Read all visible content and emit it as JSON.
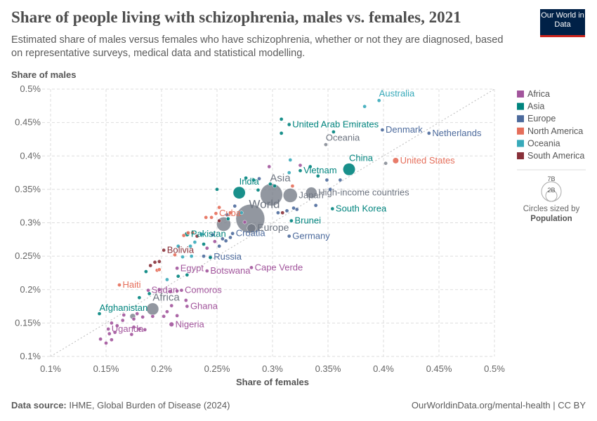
{
  "header": {
    "title": "Share of people living with schizophrenia, males vs. females, 2021",
    "subtitle": "Estimated share of males versus females who have schizophrenia, whether or not they are diagnosed, based on representative surveys, medical data and statistical modelling.",
    "logo": "Our World in Data"
  },
  "footer": {
    "source_label": "Data source:",
    "source": "IHME, Global Burden of Disease (2024)",
    "link": "OurWorldinData.org/mental-health | CC BY"
  },
  "colors": {
    "Africa": "#a2559c",
    "Asia": "#00847e",
    "Europe": "#4c6a9c",
    "North America": "#e56e5a",
    "Oceania": "#38aaba",
    "South America": "#883039",
    "Region": "#6d7480"
  },
  "legend": {
    "items": [
      "Africa",
      "Asia",
      "Europe",
      "North America",
      "Oceania",
      "South America"
    ],
    "size_title": "Circles sized by",
    "size_var": "Population",
    "size_labels": [
      "7B",
      "2B"
    ]
  },
  "chart_data": {
    "type": "scatter",
    "xlabel": "Share of females",
    "ylabel": "Share of males",
    "xlim": [
      0.1,
      0.5
    ],
    "ylim": [
      0.1,
      0.5
    ],
    "xticks": [
      "0.1%",
      "0.15%",
      "0.2%",
      "0.25%",
      "0.3%",
      "0.35%",
      "0.4%",
      "0.45%",
      "0.5%"
    ],
    "yticks": [
      "0.1%",
      "0.15%",
      "0.2%",
      "0.25%",
      "0.3%",
      "0.35%",
      "0.4%",
      "0.45%",
      "0.5%"
    ],
    "grid": true,
    "legend_position": "right",
    "diagonal_line": true,
    "points": [
      {
        "label": "Australia",
        "x": 0.396,
        "y": 0.483,
        "group": "Oceania",
        "pop": 0.026
      },
      {
        "label": "United Arab Emirates",
        "x": 0.315,
        "y": 0.447,
        "group": "Asia",
        "pop": 0.01
      },
      {
        "label": "Denmark",
        "x": 0.399,
        "y": 0.439,
        "group": "Europe",
        "pop": 0.006
      },
      {
        "label": "Netherlands",
        "x": 0.441,
        "y": 0.434,
        "group": "Europe",
        "pop": 0.018
      },
      {
        "label": "Oceania",
        "x": 0.348,
        "y": 0.417,
        "group": "Region",
        "pop": 0.045
      },
      {
        "label": "United States",
        "x": 0.411,
        "y": 0.393,
        "group": "North America",
        "pop": 0.34
      },
      {
        "label": "China",
        "x": 0.369,
        "y": 0.38,
        "group": "Asia",
        "pop": 1.42
      },
      {
        "label": "Vietnam",
        "x": 0.325,
        "y": 0.378,
        "group": "Asia",
        "pop": 0.098
      },
      {
        "label": "High-income countries",
        "x": 0.335,
        "y": 0.345,
        "group": "Region",
        "pop": 1.2
      },
      {
        "label": "Asia",
        "x": 0.299,
        "y": 0.342,
        "group": "Region",
        "pop": 4.7
      },
      {
        "label": "Japan",
        "x": 0.316,
        "y": 0.341,
        "group": "Region",
        "pop": 1.9
      },
      {
        "label": "India",
        "x": 0.27,
        "y": 0.345,
        "group": "Asia",
        "pop": 1.41
      },
      {
        "label": "World",
        "x": 0.28,
        "y": 0.306,
        "group": "Region",
        "pop": 7.9
      },
      {
        "label": "Europe",
        "x": 0.281,
        "y": 0.292,
        "group": "Region",
        "pop": 0.74
      },
      {
        "label": "South Korea",
        "x": 0.354,
        "y": 0.321,
        "group": "Asia",
        "pop": 0.05
      },
      {
        "label": "Brunei",
        "x": 0.317,
        "y": 0.303,
        "group": "Asia",
        "pop": 0.0005
      },
      {
        "label": "Germany",
        "x": 0.315,
        "y": 0.28,
        "group": "Europe",
        "pop": 0.083
      },
      {
        "label": "Croatia",
        "x": 0.264,
        "y": 0.284,
        "group": "Europe",
        "pop": 0.004
      },
      {
        "label": "Pakistan",
        "x": 0.223,
        "y": 0.283,
        "group": "Asia",
        "pop": 0.23
      },
      {
        "label": "Cuba",
        "x": 0.249,
        "y": 0.314,
        "group": "North America",
        "pop": 0.011
      },
      {
        "label": "Bolivia",
        "x": 0.202,
        "y": 0.259,
        "group": "South America",
        "pop": 0.012
      },
      {
        "label": "Russia",
        "x": 0.244,
        "y": 0.249,
        "group": "Europe",
        "pop": 0.145
      },
      {
        "label": "Egypt",
        "x": 0.214,
        "y": 0.232,
        "group": "Africa",
        "pop": 0.11
      },
      {
        "label": "Botswana",
        "x": 0.241,
        "y": 0.228,
        "group": "Africa",
        "pop": 0.0025
      },
      {
        "label": "Cape Verde",
        "x": 0.281,
        "y": 0.233,
        "group": "Africa",
        "pop": 0.0006
      },
      {
        "label": "Haiti",
        "x": 0.162,
        "y": 0.207,
        "group": "North America",
        "pop": 0.011
      },
      {
        "label": "Sudan",
        "x": 0.188,
        "y": 0.199,
        "group": "Africa",
        "pop": 0.046
      },
      {
        "label": "Comoros",
        "x": 0.218,
        "y": 0.199,
        "group": "Africa",
        "pop": 0.0008
      },
      {
        "label": "Africa",
        "x": 0.192,
        "y": 0.171,
        "group": "Region",
        "pop": 1.4
      },
      {
        "label": "Ghana",
        "x": 0.223,
        "y": 0.175,
        "group": "Africa",
        "pop": 0.033
      },
      {
        "label": "Afghanistan",
        "x": 0.144,
        "y": 0.164,
        "group": "Asia",
        "pop": 0.04
      },
      {
        "label": "Nigeria",
        "x": 0.209,
        "y": 0.148,
        "group": "Africa",
        "pop": 0.21
      },
      {
        "label": "Uganda",
        "x": 0.152,
        "y": 0.141,
        "group": "Africa",
        "pop": 0.047
      },
      {
        "label": "",
        "x": 0.256,
        "y": 0.298,
        "group": "Region",
        "pop": 1.9
      },
      {
        "label": "",
        "x": 0.383,
        "y": 0.474,
        "group": "Oceania",
        "pop": 0.005
      },
      {
        "label": "",
        "x": 0.308,
        "y": 0.455,
        "group": "Asia",
        "pop": 0.003
      },
      {
        "label": "",
        "x": 0.308,
        "y": 0.434,
        "group": "Asia",
        "pop": 0.003
      },
      {
        "label": "",
        "x": 0.355,
        "y": 0.436,
        "group": "Asia",
        "pop": 0.004
      },
      {
        "label": "",
        "x": 0.402,
        "y": 0.389,
        "group": "Region",
        "pop": 0.003
      },
      {
        "label": "",
        "x": 0.334,
        "y": 0.384,
        "group": "Asia",
        "pop": 0.004
      },
      {
        "label": "",
        "x": 0.316,
        "y": 0.394,
        "group": "Oceania",
        "pop": 0.003
      },
      {
        "label": "",
        "x": 0.315,
        "y": 0.375,
        "group": "Oceania",
        "pop": 0.003
      },
      {
        "label": "",
        "x": 0.297,
        "y": 0.384,
        "group": "Africa",
        "pop": 0.003
      },
      {
        "label": "",
        "x": 0.325,
        "y": 0.386,
        "group": "Africa",
        "pop": 0.003
      },
      {
        "label": "",
        "x": 0.341,
        "y": 0.37,
        "group": "Asia",
        "pop": 0.003
      },
      {
        "label": "",
        "x": 0.349,
        "y": 0.364,
        "group": "Europe",
        "pop": 0.004
      },
      {
        "label": "",
        "x": 0.361,
        "y": 0.364,
        "group": "Europe",
        "pop": 0.004
      },
      {
        "label": "",
        "x": 0.352,
        "y": 0.35,
        "group": "Europe",
        "pop": 0.004
      },
      {
        "label": "",
        "x": 0.288,
        "y": 0.366,
        "group": "Europe",
        "pop": 0.004
      },
      {
        "label": "",
        "x": 0.302,
        "y": 0.355,
        "group": "Asia",
        "pop": 0.005
      },
      {
        "label": "",
        "x": 0.276,
        "y": 0.367,
        "group": "Asia",
        "pop": 0.004
      },
      {
        "label": "",
        "x": 0.283,
        "y": 0.364,
        "group": "Asia",
        "pop": 0.004
      },
      {
        "label": "",
        "x": 0.287,
        "y": 0.349,
        "group": "Asia",
        "pop": 0.004
      },
      {
        "label": "",
        "x": 0.298,
        "y": 0.358,
        "group": "Asia",
        "pop": 0.03
      },
      {
        "label": "",
        "x": 0.25,
        "y": 0.35,
        "group": "Asia",
        "pop": 0.004
      },
      {
        "label": "",
        "x": 0.318,
        "y": 0.355,
        "group": "North America",
        "pop": 0.004
      },
      {
        "label": "",
        "x": 0.339,
        "y": 0.326,
        "group": "Europe",
        "pop": 0.004
      },
      {
        "label": "",
        "x": 0.319,
        "y": 0.322,
        "group": "Europe",
        "pop": 0.004
      },
      {
        "label": "",
        "x": 0.322,
        "y": 0.32,
        "group": "Europe",
        "pop": 0.004
      },
      {
        "label": "",
        "x": 0.305,
        "y": 0.315,
        "group": "Europe",
        "pop": 0.004
      },
      {
        "label": "",
        "x": 0.309,
        "y": 0.315,
        "group": "South America",
        "pop": 0.004
      },
      {
        "label": "",
        "x": 0.313,
        "y": 0.318,
        "group": "Europe",
        "pop": 0.004
      },
      {
        "label": "",
        "x": 0.266,
        "y": 0.325,
        "group": "Europe",
        "pop": 0.004
      },
      {
        "label": "",
        "x": 0.262,
        "y": 0.315,
        "group": "North America",
        "pop": 0.004
      },
      {
        "label": "",
        "x": 0.252,
        "y": 0.323,
        "group": "North America",
        "pop": 0.004
      },
      {
        "label": "",
        "x": 0.259,
        "y": 0.312,
        "group": "Europe",
        "pop": 0.004
      },
      {
        "label": "",
        "x": 0.272,
        "y": 0.315,
        "group": "Oceania",
        "pop": 0.004
      },
      {
        "label": "",
        "x": 0.24,
        "y": 0.308,
        "group": "North America",
        "pop": 0.004
      },
      {
        "label": "",
        "x": 0.245,
        "y": 0.308,
        "group": "North America",
        "pop": 0.004
      },
      {
        "label": "",
        "x": 0.252,
        "y": 0.303,
        "group": "South America",
        "pop": 0.02
      },
      {
        "label": "",
        "x": 0.26,
        "y": 0.306,
        "group": "Asia",
        "pop": 0.004
      },
      {
        "label": "",
        "x": 0.275,
        "y": 0.301,
        "group": "Africa",
        "pop": 0.004
      },
      {
        "label": "",
        "x": 0.224,
        "y": 0.285,
        "group": "North America",
        "pop": 0.004
      },
      {
        "label": "",
        "x": 0.22,
        "y": 0.281,
        "group": "North America",
        "pop": 0.004
      },
      {
        "label": "",
        "x": 0.228,
        "y": 0.285,
        "group": "North America",
        "pop": 0.004
      },
      {
        "label": "",
        "x": 0.232,
        "y": 0.28,
        "group": "South America",
        "pop": 0.004
      },
      {
        "label": "",
        "x": 0.236,
        "y": 0.283,
        "group": "Oceania",
        "pop": 0.004
      },
      {
        "label": "",
        "x": 0.246,
        "y": 0.282,
        "group": "Europe",
        "pop": 0.004
      },
      {
        "label": "",
        "x": 0.255,
        "y": 0.276,
        "group": "Europe",
        "pop": 0.004
      },
      {
        "label": "",
        "x": 0.262,
        "y": 0.278,
        "group": "Europe",
        "pop": 0.004
      },
      {
        "label": "",
        "x": 0.258,
        "y": 0.273,
        "group": "Europe",
        "pop": 0.004
      },
      {
        "label": "",
        "x": 0.23,
        "y": 0.271,
        "group": "Oceania",
        "pop": 0.004
      },
      {
        "label": "",
        "x": 0.238,
        "y": 0.268,
        "group": "Asia",
        "pop": 0.004
      },
      {
        "label": "",
        "x": 0.248,
        "y": 0.272,
        "group": "Africa",
        "pop": 0.004
      },
      {
        "label": "",
        "x": 0.252,
        "y": 0.265,
        "group": "Europe",
        "pop": 0.004
      },
      {
        "label": "",
        "x": 0.226,
        "y": 0.265,
        "group": "Oceania",
        "pop": 0.004
      },
      {
        "label": "",
        "x": 0.215,
        "y": 0.265,
        "group": "Oceania",
        "pop": 0.004
      },
      {
        "label": "",
        "x": 0.241,
        "y": 0.262,
        "group": "Africa",
        "pop": 0.004
      },
      {
        "label": "",
        "x": 0.212,
        "y": 0.252,
        "group": "North America",
        "pop": 0.004
      },
      {
        "label": "",
        "x": 0.244,
        "y": 0.248,
        "group": "Asia",
        "pop": 0.004
      },
      {
        "label": "",
        "x": 0.238,
        "y": 0.25,
        "group": "Europe",
        "pop": 0.004
      },
      {
        "label": "",
        "x": 0.219,
        "y": 0.249,
        "group": "Oceania",
        "pop": 0.004
      },
      {
        "label": "",
        "x": 0.227,
        "y": 0.25,
        "group": "Oceania",
        "pop": 0.004
      },
      {
        "label": "",
        "x": 0.194,
        "y": 0.241,
        "group": "South America",
        "pop": 0.004
      },
      {
        "label": "",
        "x": 0.198,
        "y": 0.242,
        "group": "South America",
        "pop": 0.004
      },
      {
        "label": "",
        "x": 0.19,
        "y": 0.236,
        "group": "South America",
        "pop": 0.004
      },
      {
        "label": "",
        "x": 0.196,
        "y": 0.229,
        "group": "North America",
        "pop": 0.004
      },
      {
        "label": "",
        "x": 0.198,
        "y": 0.23,
        "group": "North America",
        "pop": 0.004
      },
      {
        "label": "",
        "x": 0.186,
        "y": 0.227,
        "group": "Asia",
        "pop": 0.004
      },
      {
        "label": "",
        "x": 0.205,
        "y": 0.215,
        "group": "Oceania",
        "pop": 0.004
      },
      {
        "label": "",
        "x": 0.215,
        "y": 0.22,
        "group": "Asia",
        "pop": 0.004
      },
      {
        "label": "",
        "x": 0.223,
        "y": 0.222,
        "group": "Asia",
        "pop": 0.004
      },
      {
        "label": "",
        "x": 0.198,
        "y": 0.2,
        "group": "Africa",
        "pop": 0.004
      },
      {
        "label": "",
        "x": 0.208,
        "y": 0.197,
        "group": "Africa",
        "pop": 0.004
      },
      {
        "label": "",
        "x": 0.214,
        "y": 0.198,
        "group": "Africa",
        "pop": 0.004
      },
      {
        "label": "",
        "x": 0.189,
        "y": 0.194,
        "group": "Asia",
        "pop": 0.004
      },
      {
        "label": "",
        "x": 0.18,
        "y": 0.188,
        "group": "Asia",
        "pop": 0.004
      },
      {
        "label": "",
        "x": 0.222,
        "y": 0.184,
        "group": "Africa",
        "pop": 0.004
      },
      {
        "label": "",
        "x": 0.209,
        "y": 0.176,
        "group": "Africa",
        "pop": 0.004
      },
      {
        "label": "",
        "x": 0.174,
        "y": 0.16,
        "group": "Region",
        "pop": 0.3
      },
      {
        "label": "",
        "x": 0.166,
        "y": 0.162,
        "group": "Africa",
        "pop": 0.004
      },
      {
        "label": "",
        "x": 0.178,
        "y": 0.164,
        "group": "Africa",
        "pop": 0.004
      },
      {
        "label": "",
        "x": 0.183,
        "y": 0.159,
        "group": "Africa",
        "pop": 0.004
      },
      {
        "label": "",
        "x": 0.205,
        "y": 0.167,
        "group": "Africa",
        "pop": 0.004
      },
      {
        "label": "",
        "x": 0.202,
        "y": 0.16,
        "group": "Africa",
        "pop": 0.004
      },
      {
        "label": "",
        "x": 0.214,
        "y": 0.161,
        "group": "Africa",
        "pop": 0.004
      },
      {
        "label": "",
        "x": 0.192,
        "y": 0.16,
        "group": "Africa",
        "pop": 0.004
      },
      {
        "label": "",
        "x": 0.165,
        "y": 0.154,
        "group": "Africa",
        "pop": 0.004
      },
      {
        "label": "",
        "x": 0.175,
        "y": 0.156,
        "group": "Africa",
        "pop": 0.004
      },
      {
        "label": "",
        "x": 0.155,
        "y": 0.15,
        "group": "Africa",
        "pop": 0.004
      },
      {
        "label": "",
        "x": 0.16,
        "y": 0.146,
        "group": "Africa",
        "pop": 0.004
      },
      {
        "label": "",
        "x": 0.175,
        "y": 0.144,
        "group": "Africa",
        "pop": 0.004
      },
      {
        "label": "",
        "x": 0.18,
        "y": 0.141,
        "group": "Africa",
        "pop": 0.004
      },
      {
        "label": "",
        "x": 0.185,
        "y": 0.14,
        "group": "Africa",
        "pop": 0.004
      },
      {
        "label": "",
        "x": 0.158,
        "y": 0.136,
        "group": "Africa",
        "pop": 0.004
      },
      {
        "label": "",
        "x": 0.153,
        "y": 0.134,
        "group": "Africa",
        "pop": 0.004
      },
      {
        "label": "",
        "x": 0.173,
        "y": 0.133,
        "group": "Africa",
        "pop": 0.004
      },
      {
        "label": "",
        "x": 0.145,
        "y": 0.126,
        "group": "Africa",
        "pop": 0.004
      },
      {
        "label": "",
        "x": 0.155,
        "y": 0.125,
        "group": "Africa",
        "pop": 0.004
      },
      {
        "label": "",
        "x": 0.15,
        "y": 0.12,
        "group": "Africa",
        "pop": 0.004
      }
    ]
  }
}
